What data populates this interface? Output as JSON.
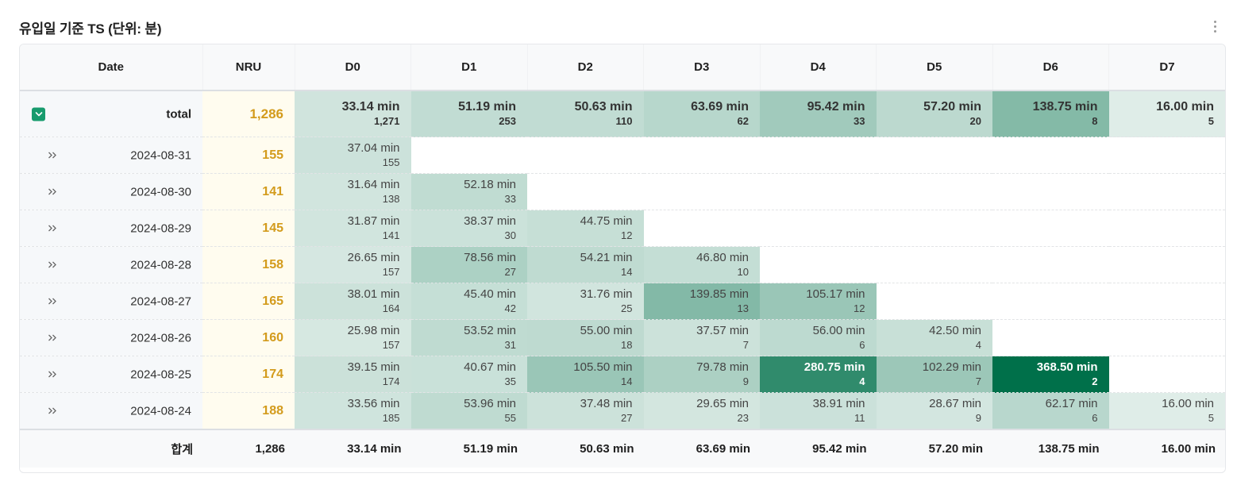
{
  "header": {
    "title": "유입일 기준 TS (단위: 분)",
    "more_icon": "vertical-ellipsis-icon"
  },
  "columns": [
    "Date",
    "NRU",
    "D0",
    "D1",
    "D2",
    "D3",
    "D4",
    "D5",
    "D6",
    "D7"
  ],
  "total_row": {
    "label": "total",
    "expand_icon": "chevron-down-icon",
    "nru": "1,286",
    "cells": [
      {
        "v": "33.14 min",
        "n": "1,271",
        "minutes": 33.14
      },
      {
        "v": "51.19 min",
        "n": "253",
        "minutes": 51.19
      },
      {
        "v": "50.63 min",
        "n": "110",
        "minutes": 50.63
      },
      {
        "v": "63.69 min",
        "n": "62",
        "minutes": 63.69
      },
      {
        "v": "95.42 min",
        "n": "33",
        "minutes": 95.42
      },
      {
        "v": "57.20 min",
        "n": "20",
        "minutes": 57.2
      },
      {
        "v": "138.75 min",
        "n": "8",
        "minutes": 138.75
      },
      {
        "v": "16.00 min",
        "n": "5",
        "minutes": 16.0
      }
    ]
  },
  "rows": [
    {
      "date": "2024-08-31",
      "nru": "155",
      "cells": [
        {
          "v": "37.04 min",
          "n": "155",
          "minutes": 37.04
        },
        null,
        null,
        null,
        null,
        null,
        null,
        null
      ]
    },
    {
      "date": "2024-08-30",
      "nru": "141",
      "cells": [
        {
          "v": "31.64 min",
          "n": "138",
          "minutes": 31.64
        },
        {
          "v": "52.18 min",
          "n": "33",
          "minutes": 52.18
        },
        null,
        null,
        null,
        null,
        null,
        null
      ]
    },
    {
      "date": "2024-08-29",
      "nru": "145",
      "cells": [
        {
          "v": "31.87 min",
          "n": "141",
          "minutes": 31.87
        },
        {
          "v": "38.37 min",
          "n": "30",
          "minutes": 38.37
        },
        {
          "v": "44.75 min",
          "n": "12",
          "minutes": 44.75
        },
        null,
        null,
        null,
        null,
        null
      ]
    },
    {
      "date": "2024-08-28",
      "nru": "158",
      "cells": [
        {
          "v": "26.65 min",
          "n": "157",
          "minutes": 26.65
        },
        {
          "v": "78.56 min",
          "n": "27",
          "minutes": 78.56
        },
        {
          "v": "54.21 min",
          "n": "14",
          "minutes": 54.21
        },
        {
          "v": "46.80 min",
          "n": "10",
          "minutes": 46.8
        },
        null,
        null,
        null,
        null
      ]
    },
    {
      "date": "2024-08-27",
      "nru": "165",
      "cells": [
        {
          "v": "38.01 min",
          "n": "164",
          "minutes": 38.01
        },
        {
          "v": "45.40 min",
          "n": "42",
          "minutes": 45.4
        },
        {
          "v": "31.76 min",
          "n": "25",
          "minutes": 31.76
        },
        {
          "v": "139.85 min",
          "n": "13",
          "minutes": 139.85
        },
        {
          "v": "105.17 min",
          "n": "12",
          "minutes": 105.17
        },
        null,
        null,
        null
      ]
    },
    {
      "date": "2024-08-26",
      "nru": "160",
      "cells": [
        {
          "v": "25.98 min",
          "n": "157",
          "minutes": 25.98
        },
        {
          "v": "53.52 min",
          "n": "31",
          "minutes": 53.52
        },
        {
          "v": "55.00 min",
          "n": "18",
          "minutes": 55.0
        },
        {
          "v": "37.57 min",
          "n": "7",
          "minutes": 37.57
        },
        {
          "v": "56.00 min",
          "n": "6",
          "minutes": 56.0
        },
        {
          "v": "42.50 min",
          "n": "4",
          "minutes": 42.5
        },
        null,
        null
      ]
    },
    {
      "date": "2024-08-25",
      "nru": "174",
      "cells": [
        {
          "v": "39.15 min",
          "n": "174",
          "minutes": 39.15
        },
        {
          "v": "40.67 min",
          "n": "35",
          "minutes": 40.67
        },
        {
          "v": "105.50 min",
          "n": "14",
          "minutes": 105.5
        },
        {
          "v": "79.78 min",
          "n": "9",
          "minutes": 79.78
        },
        {
          "v": "280.75 min",
          "n": "4",
          "minutes": 280.75
        },
        {
          "v": "102.29 min",
          "n": "7",
          "minutes": 102.29
        },
        {
          "v": "368.50 min",
          "n": "2",
          "minutes": 368.5
        },
        null
      ]
    },
    {
      "date": "2024-08-24",
      "nru": "188",
      "cells": [
        {
          "v": "33.56 min",
          "n": "185",
          "minutes": 33.56
        },
        {
          "v": "53.96 min",
          "n": "55",
          "minutes": 53.96
        },
        {
          "v": "37.48 min",
          "n": "27",
          "minutes": 37.48
        },
        {
          "v": "29.65 min",
          "n": "23",
          "minutes": 29.65
        },
        {
          "v": "38.91 min",
          "n": "11",
          "minutes": 38.91
        },
        {
          "v": "28.67 min",
          "n": "9",
          "minutes": 28.67
        },
        {
          "v": "62.17 min",
          "n": "6",
          "minutes": 62.17
        },
        {
          "v": "16.00 min",
          "n": "5",
          "minutes": 16.0
        }
      ]
    }
  ],
  "row_expand_icon": "double-chevron-right-icon",
  "footer": {
    "label": "합계",
    "nru": "1,286",
    "values": [
      "33.14 min",
      "51.19 min",
      "50.63 min",
      "63.69 min",
      "95.42 min",
      "57.20 min",
      "138.75 min",
      "16.00 min"
    ]
  },
  "heatmap": {
    "low_color": "#f3f8f6",
    "high_color": "#00704a",
    "max_minutes": 368.5
  }
}
